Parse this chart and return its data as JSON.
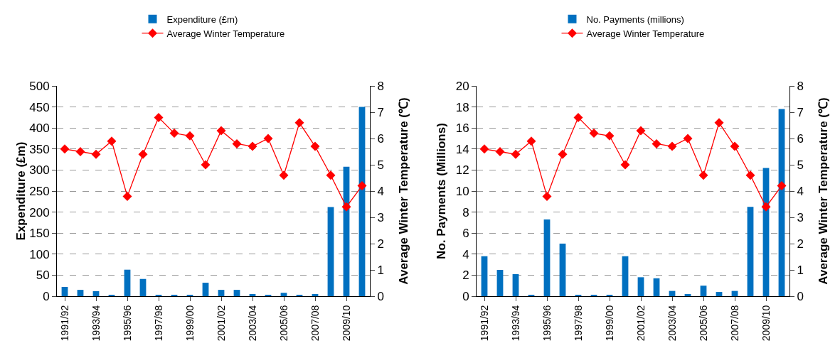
{
  "chart_data": [
    {
      "type": "bar",
      "categories": [
        "1991/92",
        null,
        "1993/94",
        null,
        "1995/96",
        null,
        "1997/98",
        null,
        "1999/00",
        null,
        "2001/02",
        null,
        "2003/04",
        null,
        "2005/06",
        null,
        "2007/08",
        null,
        "2009/10",
        null
      ],
      "series": [
        {
          "name": "Expenditure (£m)",
          "color": "#0070c0",
          "values": [
            22,
            15,
            12,
            3,
            63,
            41,
            3,
            3,
            3,
            32,
            15,
            15,
            5,
            3,
            8,
            3,
            5,
            212,
            308,
            450
          ]
        },
        {
          "name": "Average Winter Temperature",
          "type": "line",
          "axis": "y2",
          "color": "#ff0000",
          "marker": "diamond",
          "line_style": "solid",
          "values": [
            5.6,
            5.5,
            5.4,
            5.9,
            3.8,
            5.4,
            6.8,
            6.2,
            6.1,
            5.0,
            6.3,
            5.8,
            5.7,
            6.0,
            4.6,
            6.6,
            5.7,
            4.6,
            3.4,
            4.2
          ]
        }
      ],
      "ylabel": "Expenditure (£m)",
      "y2label": "Average Winter Temperature (℃)",
      "ylim": [
        0,
        500
      ],
      "yticks": [
        0,
        50,
        100,
        150,
        200,
        250,
        300,
        350,
        400,
        450,
        500
      ],
      "y2lim": [
        0,
        8
      ],
      "y2ticks": [
        0,
        1,
        2,
        3,
        4,
        5,
        6,
        7,
        8
      ],
      "grid": "y",
      "legend": "top"
    },
    {
      "type": "bar",
      "categories": [
        "1991/92",
        null,
        "1993/94",
        null,
        "1995/96",
        null,
        "1997/98",
        null,
        "1999/00",
        null,
        "2001/02",
        null,
        "2003/04",
        null,
        "2005/06",
        null,
        "2007/08",
        null,
        "2009/10",
        null
      ],
      "series": [
        {
          "name": "No. Payments (millions)",
          "color": "#0070c0",
          "values": [
            3.8,
            2.5,
            2.1,
            0.1,
            7.3,
            5.0,
            0.1,
            0.1,
            0.1,
            3.8,
            1.8,
            1.7,
            0.5,
            0.2,
            1.0,
            0.4,
            0.5,
            8.5,
            12.2,
            17.8
          ]
        },
        {
          "name": "Average Winter Temperature",
          "type": "line",
          "axis": "y2",
          "color": "#ff0000",
          "marker": "diamond",
          "line_style": "solid",
          "values": [
            5.6,
            5.5,
            5.4,
            5.9,
            3.8,
            5.4,
            6.8,
            6.2,
            6.1,
            5.0,
            6.3,
            5.8,
            5.7,
            6.0,
            4.6,
            6.6,
            5.7,
            4.6,
            3.4,
            4.2
          ]
        }
      ],
      "ylabel": "No. Payments (Millions)",
      "y2label": "Average Winter Temperature (℃)",
      "ylim": [
        0,
        20
      ],
      "yticks": [
        0,
        2,
        4,
        6,
        8,
        10,
        12,
        14,
        16,
        18,
        20
      ],
      "y2lim": [
        0,
        8
      ],
      "y2ticks": [
        0,
        1,
        2,
        3,
        4,
        5,
        6,
        7,
        8
      ],
      "grid": "y",
      "legend": "top"
    }
  ]
}
